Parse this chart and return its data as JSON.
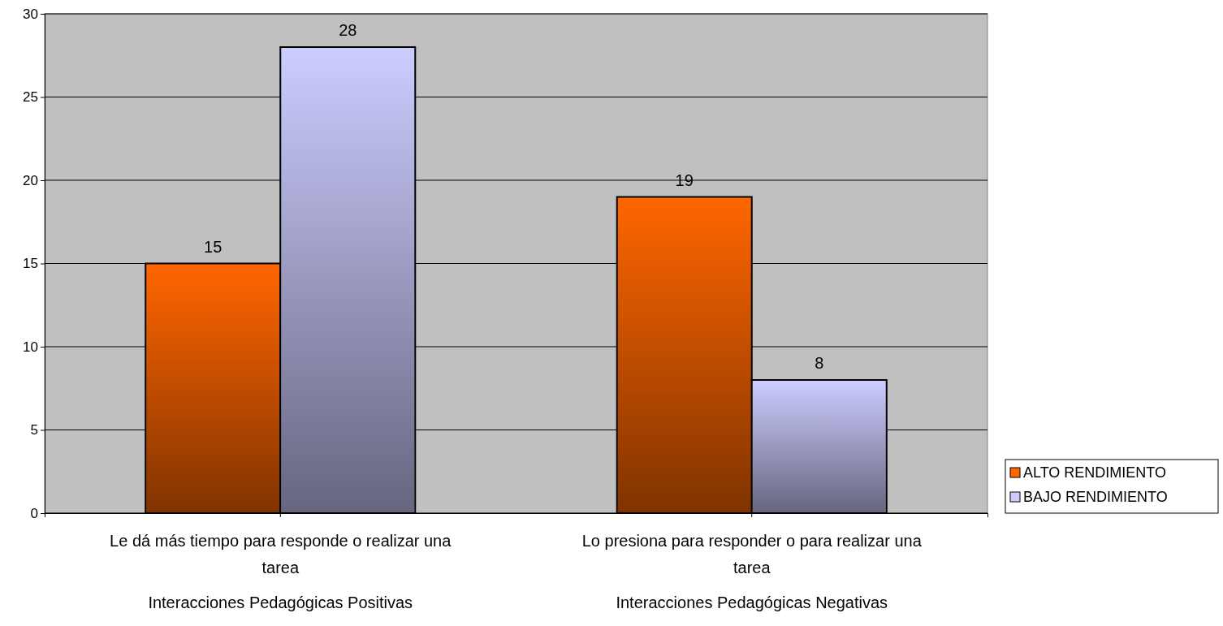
{
  "chart_data": {
    "type": "bar",
    "categories": [
      "Le dá más tiempo para responde o realizar una tarea",
      "Lo presiona para responder o para realizar una tarea"
    ],
    "series": [
      {
        "name": "ALTO RENDIMIENTO",
        "color": "#ff6600",
        "values": [
          15,
          19
        ]
      },
      {
        "name": "BAJO RENDIMIENTO",
        "color": "#ccccff",
        "values": [
          28,
          8
        ]
      }
    ],
    "annotations": [
      "Interacciones Pedagógicas Positivas",
      "Interacciones Pedagógicas Negativas"
    ],
    "ylim": [
      0,
      30
    ],
    "yticks": [
      0,
      5,
      10,
      15,
      20,
      25,
      30
    ],
    "grid": "y",
    "data_labels": true,
    "legend": "bottom right"
  }
}
